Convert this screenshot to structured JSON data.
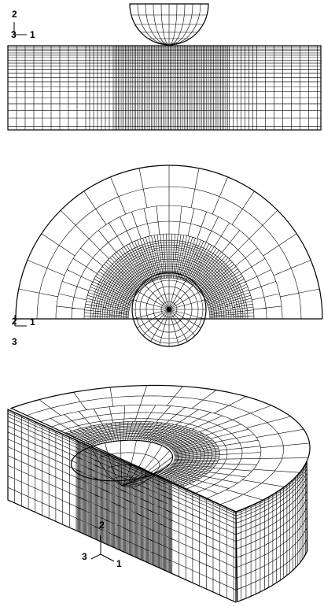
{
  "triads": [
    {
      "labels": [
        "2",
        "3",
        "1"
      ]
    },
    {
      "labels": [
        "2",
        "1",
        "3"
      ]
    },
    {
      "labels": [
        "2",
        "3",
        "1"
      ]
    }
  ]
}
